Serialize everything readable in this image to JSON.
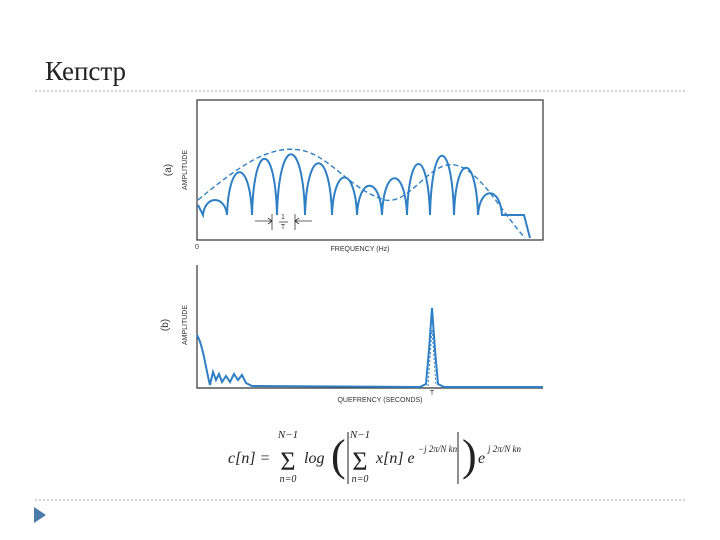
{
  "title": "Кепстр",
  "figure": {
    "panel_a": {
      "label": "(a)",
      "y_axis": "AMPLITUDE",
      "x_axis": "FREQUENCY (Hz)",
      "x_origin": "0",
      "annotation_numerator": "1",
      "annotation_denominator": "T"
    },
    "panel_b": {
      "label": "(b)",
      "y_axis": "AMPLITUDE",
      "x_axis": "QUEFRENCY (SECONDS)",
      "marker": "T"
    }
  },
  "formula": {
    "lhs": "c[n] =",
    "sum_upper": "N−1",
    "sum_lower": "n=0",
    "log": "log",
    "inner_upper": "N−1",
    "inner_lower": "n=0",
    "term": "x[n] e",
    "exp_inner": "−j 2π/N kn",
    "outer_e": "e",
    "exp_outer": "j 2π/N kn"
  }
}
